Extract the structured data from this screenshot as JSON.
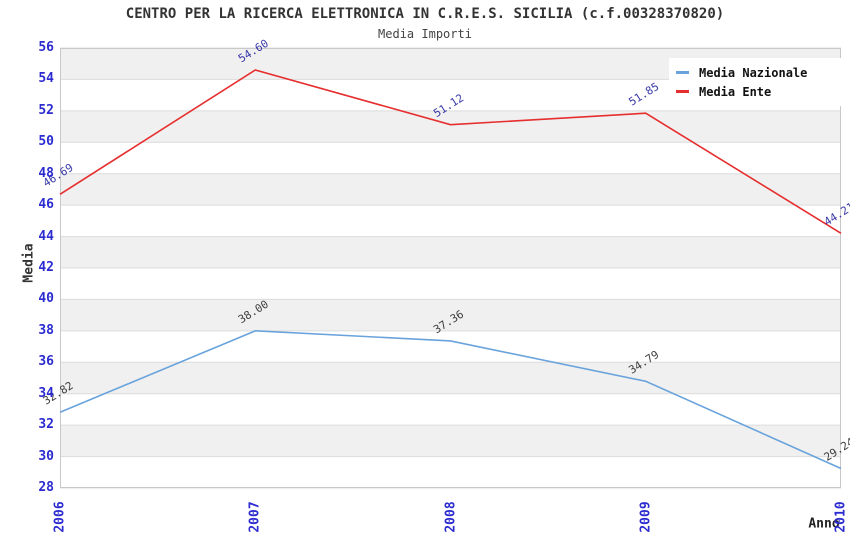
{
  "title": "CENTRO PER LA RICERCA ELETTRONICA IN C.R.E.S. SICILIA (c.f.00328370820)",
  "subtitle": "Media Importi",
  "chart_data": {
    "type": "line",
    "categories": [
      "2006",
      "2007",
      "2008",
      "2009",
      "2010"
    ],
    "series": [
      {
        "name": "Media Nazionale",
        "color": "#6aa3dc",
        "label_color": "#3d3d3d",
        "values": [
          32.82,
          38.0,
          37.36,
          34.79,
          29.24
        ]
      },
      {
        "name": "Media Ente",
        "color": "#e62e2e",
        "label_color": "#3939a8",
        "values": [
          46.69,
          54.6,
          51.12,
          51.85,
          44.21
        ]
      }
    ],
    "xlabel": "Anno",
    "ylabel": "Media",
    "ylim": [
      28,
      56
    ],
    "ytick_step": 2,
    "grid": true,
    "legend_position": "top-right",
    "style": {
      "band_color": "#f0f0f0",
      "gridline_color": "#dcdcdc",
      "border_color": "#c8c8c8",
      "tick_label_color": "#2b2bd0"
    }
  }
}
